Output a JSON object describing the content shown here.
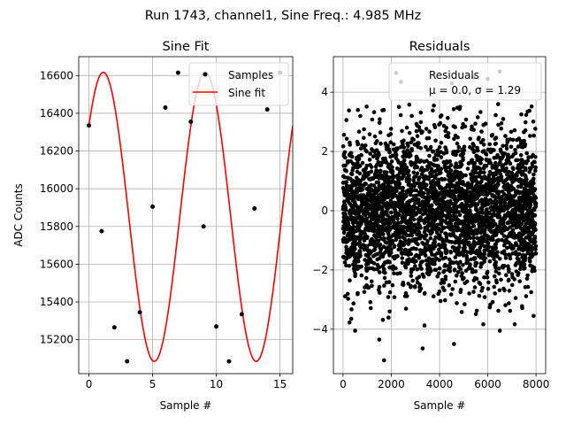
{
  "suptitle": "Run 1743, channel1, Sine Freq.: 4.985 MHz",
  "colors": {
    "marker": "#000000",
    "fit": "#ff0000",
    "grid": "#b0b0b0",
    "legend_edge": "#cccccc"
  },
  "chart_data": [
    {
      "type": "line",
      "title": "Sine Fit",
      "xlabel": "Sample #",
      "ylabel": "ADC Counts",
      "xlim": [
        -0.8,
        16.0
      ],
      "ylim": [
        15020,
        16700
      ],
      "xticks": [
        0,
        5,
        10,
        15
      ],
      "yticks": [
        15200,
        15400,
        15600,
        15800,
        16000,
        16200,
        16400,
        16600
      ],
      "grid": true,
      "legend": {
        "position": "top-right",
        "entries": [
          "Samples",
          "Sine fit"
        ]
      },
      "series": [
        {
          "name": "Samples",
          "kind": "scatter",
          "x": [
            0,
            1,
            2,
            3,
            4,
            5,
            6,
            7,
            8,
            9,
            10,
            11,
            12,
            13,
            14,
            15
          ],
          "y": [
            16335,
            15775,
            15265,
            15085,
            15345,
            15905,
            16430,
            16615,
            16355,
            15800,
            15270,
            15085,
            15335,
            15895,
            16420,
            16615
          ]
        },
        {
          "name": "Sine fit",
          "kind": "line",
          "function": "sine",
          "amplitude": 766,
          "offset": 15851,
          "period": 8.0,
          "phase_deg": 39.0,
          "x_range": [
            0,
            16
          ]
        }
      ]
    },
    {
      "type": "scatter",
      "title": "Residuals",
      "xlabel": "Sample #",
      "ylabel": "",
      "xlim": [
        -400,
        8400
      ],
      "ylim": [
        -5.5,
        5.2
      ],
      "xticks": [
        0,
        2000,
        4000,
        6000,
        8000
      ],
      "yticks": [
        -4,
        -2,
        0,
        2,
        4
      ],
      "grid": true,
      "legend": {
        "position": "top-right",
        "entries": [
          "Residuals",
          "μ = 0.0, σ = 1.29"
        ]
      },
      "series": [
        {
          "name": "Residuals",
          "count": 8000,
          "mean": 0.0,
          "std": 1.29,
          "x_range": [
            0,
            8000
          ],
          "outliers": [
            [
              1700,
              -5.05
            ],
            [
              1500,
              -4.35
            ],
            [
              2200,
              4.65
            ],
            [
              6500,
              4.7
            ],
            [
              3300,
              -4.65
            ],
            [
              4600,
              -4.5
            ],
            [
              6000,
              4.45
            ],
            [
              6500,
              -4.05
            ],
            [
              500,
              -4.05
            ],
            [
              4500,
              4.3
            ],
            [
              7900,
              -3.55
            ],
            [
              2400,
              4.35
            ],
            [
              5400,
              4.5
            ]
          ]
        }
      ]
    }
  ]
}
